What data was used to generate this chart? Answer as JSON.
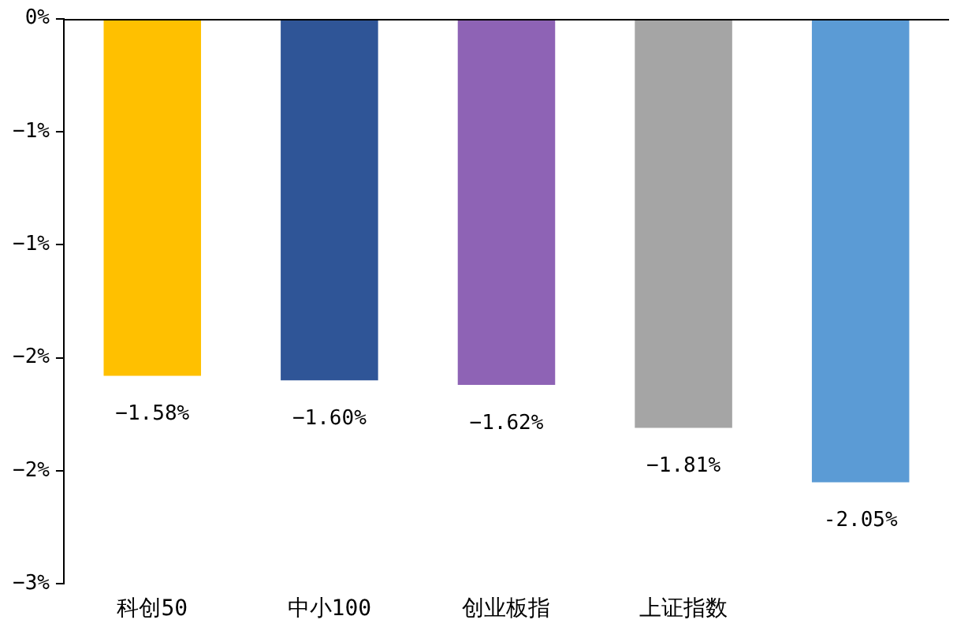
{
  "chart_data": {
    "type": "bar",
    "categories": [
      "科创50",
      "中小100",
      "创业板指",
      "上证指数",
      null
    ],
    "values": [
      -1.58,
      -1.6,
      -1.62,
      -1.81,
      -2.05
    ],
    "colors": [
      "#ffc000",
      "#2f5597",
      "#8e63b5",
      "#a5a5a5",
      "#5b9bd5"
    ],
    "value_labels": [
      "−1.58%",
      "−1.60%",
      "−1.62%",
      "−1.81%",
      "-2.05%"
    ],
    "ylim": [
      -2.5,
      0
    ],
    "yticks": [
      {
        "value": 0,
        "label": "0%"
      },
      {
        "value": -0.5,
        "label": "−1%"
      },
      {
        "value": -1,
        "label": "−1%"
      },
      {
        "value": -1.5,
        "label": "−2%"
      },
      {
        "value": -2,
        "label": "−2%"
      },
      {
        "value": -2.5,
        "label": "−3%"
      }
    ],
    "grid": false,
    "legend": false
  }
}
